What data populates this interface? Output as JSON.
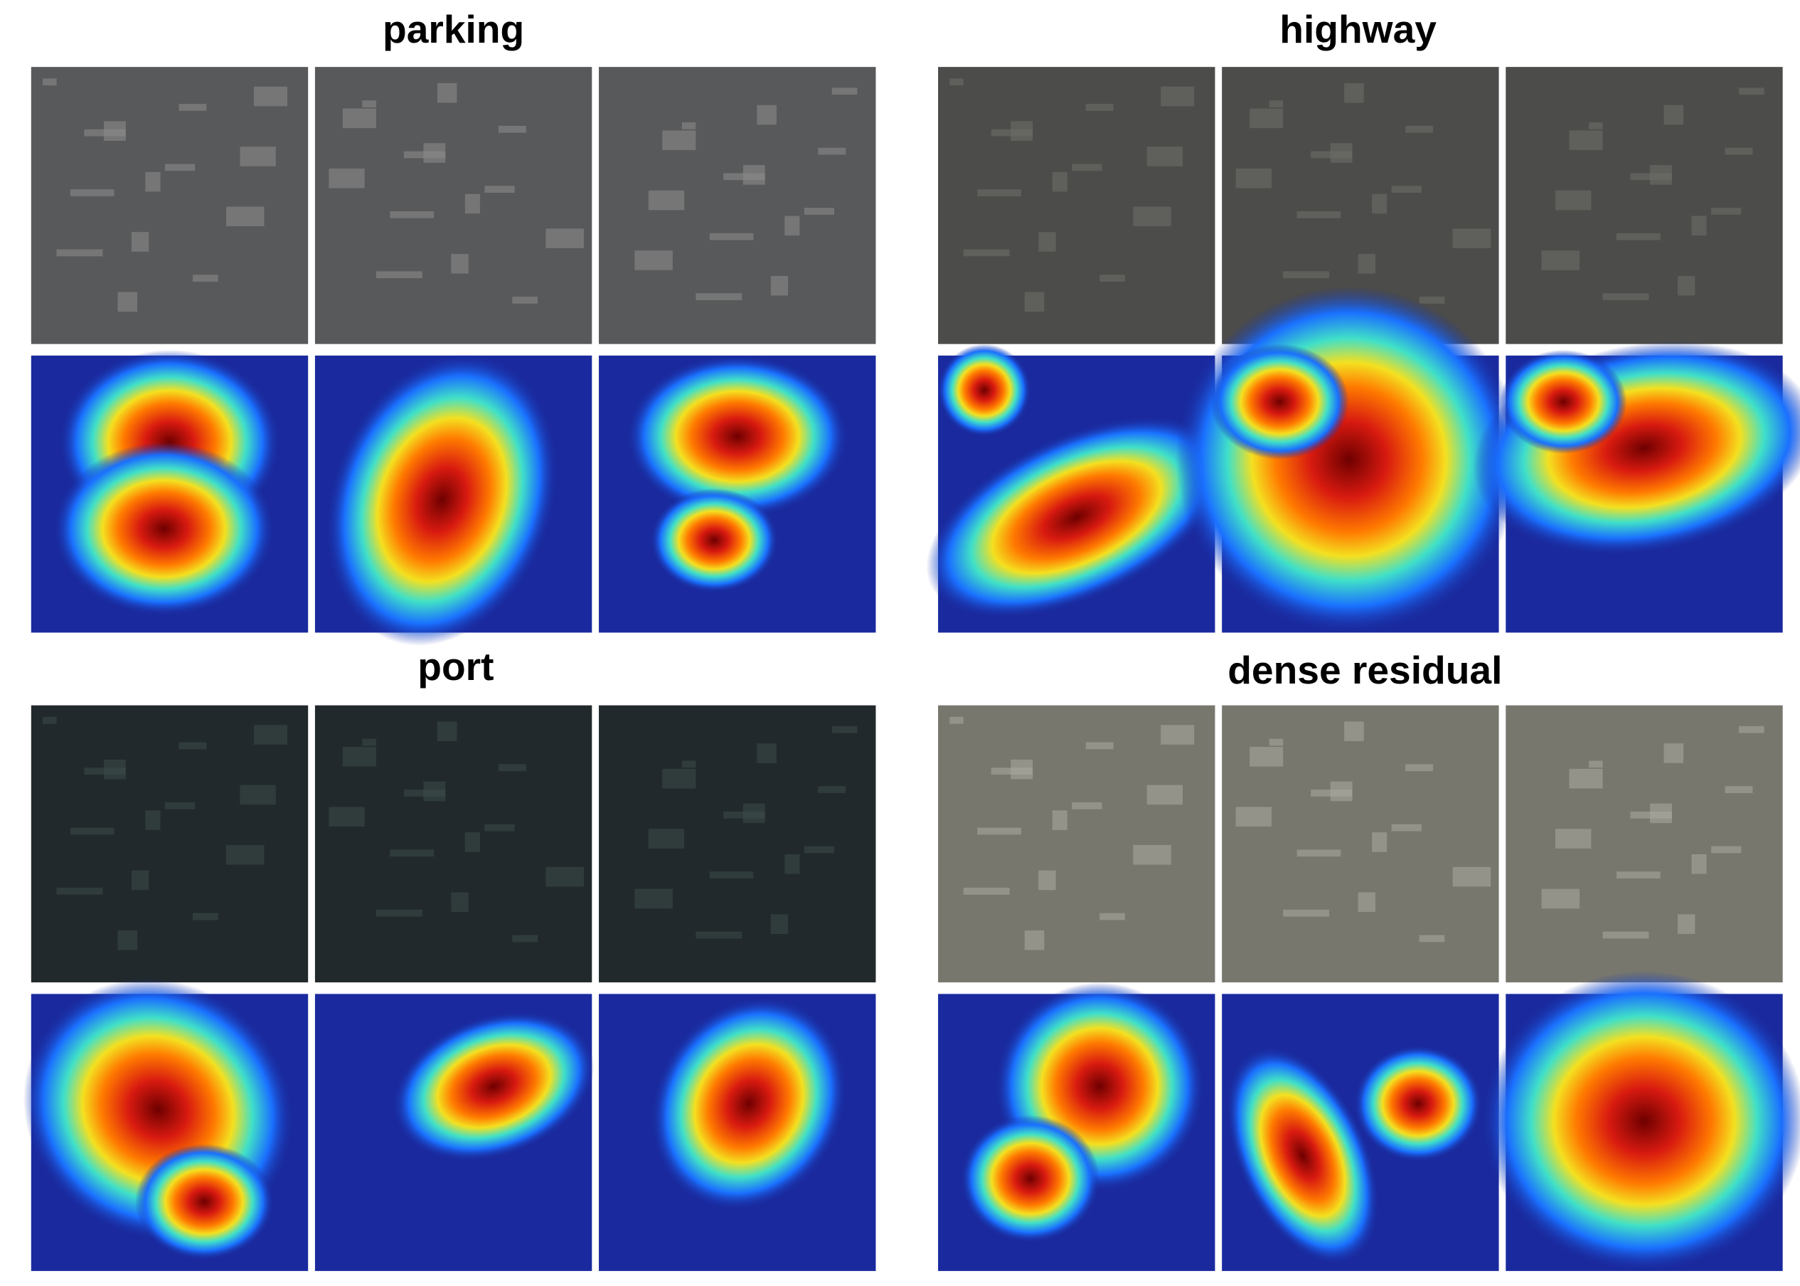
{
  "groups": [
    {
      "title": "parking"
    },
    {
      "title": "highway"
    },
    {
      "title": "port"
    },
    {
      "title": "dense residual"
    }
  ]
}
